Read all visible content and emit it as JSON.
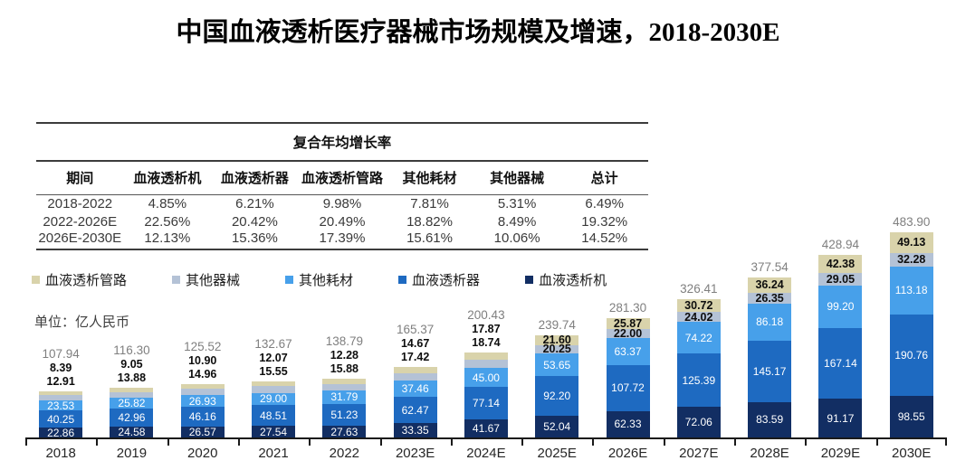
{
  "title": "中国血液透析医疗器械市场规模及增速，2018-2030E",
  "unit_label": "单位：亿人民币",
  "colors": {
    "pipeline_beige": "#d9d3ab",
    "other_device_gray": "#b4c2d6",
    "other_consumable_lightblue": "#47a0ea",
    "dialyzer_blue": "#1e6ac1",
    "machine_navy": "#122e63",
    "total_label_gray": "#7f7f7f"
  },
  "cagr_table": {
    "title": "复合年均增长率",
    "columns": [
      "期间",
      "血液透析机",
      "血液透析器",
      "血液透析管路",
      "其他耗材",
      "其他器械",
      "总计"
    ],
    "rows": [
      [
        "2018-2022",
        "4.85%",
        "6.21%",
        "9.98%",
        "7.81%",
        "5.31%",
        "6.49%"
      ],
      [
        "2022-2026E",
        "22.56%",
        "20.42%",
        "20.49%",
        "18.82%",
        "8.49%",
        "19.32%"
      ],
      [
        "2026E-2030E",
        "12.13%",
        "15.36%",
        "17.39%",
        "15.61%",
        "10.06%",
        "14.52%"
      ]
    ]
  },
  "legend": [
    {
      "label": "血液透析管路",
      "color": "#d9d3ab"
    },
    {
      "label": "其他器械",
      "color": "#b4c2d6"
    },
    {
      "label": "其他耗材",
      "color": "#47a0ea"
    },
    {
      "label": "血液透析器",
      "color": "#1e6ac1"
    },
    {
      "label": "血液透析机",
      "color": "#122e63"
    }
  ],
  "chart_data": {
    "type": "bar",
    "stacked": true,
    "title": "中国血液透析医疗器械市场规模及增速，2018-2030E",
    "unit": "亿人民币",
    "legend_position": "top-left",
    "grid": false,
    "categories": [
      "2018",
      "2019",
      "2020",
      "2021",
      "2022",
      "2023E",
      "2024E",
      "2025E",
      "2026E",
      "2027E",
      "2028E",
      "2029E",
      "2030E"
    ],
    "series": [
      {
        "name": "血液透析机",
        "color": "#122e63",
        "values": [
          22.86,
          24.58,
          26.57,
          27.54,
          27.63,
          33.35,
          41.67,
          52.04,
          62.33,
          72.06,
          83.59,
          91.17,
          98.55
        ]
      },
      {
        "name": "血液透析器",
        "color": "#1e6ac1",
        "values": [
          40.25,
          42.96,
          46.16,
          48.51,
          51.23,
          62.47,
          77.14,
          92.2,
          107.72,
          125.39,
          145.17,
          167.14,
          190.76
        ]
      },
      {
        "name": "其他耗材",
        "color": "#47a0ea",
        "values": [
          23.53,
          25.82,
          26.93,
          29.0,
          31.79,
          37.46,
          45.0,
          53.65,
          63.37,
          74.22,
          86.18,
          99.2,
          113.18
        ]
      },
      {
        "name": "其他器械",
        "color": "#b4c2d6",
        "values": [
          12.91,
          13.88,
          14.96,
          15.55,
          15.88,
          17.42,
          18.74,
          20.25,
          22.0,
          24.02,
          26.35,
          29.05,
          32.28
        ]
      },
      {
        "name": "血液透析管路",
        "color": "#d9d3ab",
        "values": [
          8.39,
          9.05,
          10.9,
          12.07,
          12.28,
          14.67,
          17.87,
          21.6,
          25.87,
          30.72,
          36.24,
          42.38,
          49.13
        ]
      }
    ],
    "totals": [
      107.94,
      116.3,
      125.52,
      132.67,
      138.79,
      165.37,
      200.43,
      239.74,
      281.3,
      326.41,
      377.54,
      428.94,
      483.9
    ]
  }
}
